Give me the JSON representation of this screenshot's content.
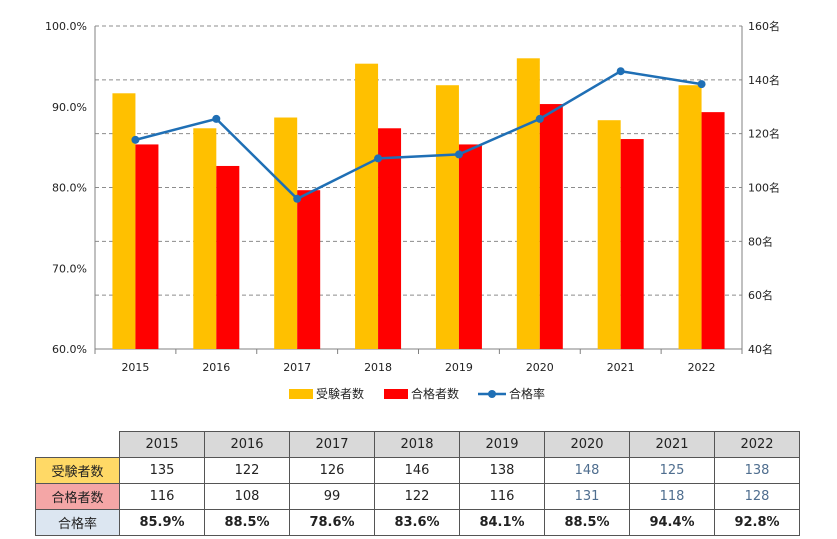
{
  "chart_data": {
    "type": "bar",
    "categories": [
      "2015",
      "2016",
      "2017",
      "2018",
      "2019",
      "2020",
      "2021",
      "2022"
    ],
    "series": [
      {
        "name": "受験者数",
        "kind": "bar",
        "axis": "right",
        "color": "#ffc000",
        "values": [
          135,
          122,
          126,
          146,
          138,
          148,
          125,
          138
        ]
      },
      {
        "name": "合格者数",
        "kind": "bar",
        "axis": "right",
        "color": "#ff0000",
        "values": [
          116,
          108,
          99,
          122,
          116,
          131,
          118,
          128
        ]
      },
      {
        "name": "合格率",
        "kind": "line",
        "axis": "left",
        "color": "#1f6fb5",
        "values": [
          85.9,
          88.5,
          78.6,
          83.6,
          84.1,
          88.5,
          94.4,
          92.8
        ]
      }
    ],
    "y_left": {
      "range": [
        60,
        100
      ],
      "ticks": [
        "60.0%",
        "70.0%",
        "80.0%",
        "90.0%",
        "100.0%"
      ]
    },
    "y_right": {
      "range": [
        40,
        160
      ],
      "ticks": [
        "40名",
        "60名",
        "80名",
        "100名",
        "120名",
        "140名",
        "160名"
      ]
    },
    "grid": true,
    "legend": {
      "position": "bottom",
      "entries": [
        "受験者数",
        "合格者数",
        "合格率"
      ]
    }
  },
  "table": {
    "years": [
      "2015",
      "2016",
      "2017",
      "2018",
      "2019",
      "2020",
      "2021",
      "2022"
    ],
    "rows": [
      {
        "label": "受験者数",
        "values": [
          "135",
          "122",
          "126",
          "146",
          "138",
          "148",
          "125",
          "138"
        ]
      },
      {
        "label": "合格者数",
        "values": [
          "116",
          "108",
          "99",
          "122",
          "116",
          "131",
          "118",
          "128"
        ]
      },
      {
        "label": "合格率",
        "values": [
          "85.9%",
          "88.5%",
          "78.6%",
          "83.6%",
          "84.1%",
          "88.5%",
          "94.4%",
          "92.8%"
        ]
      }
    ]
  }
}
